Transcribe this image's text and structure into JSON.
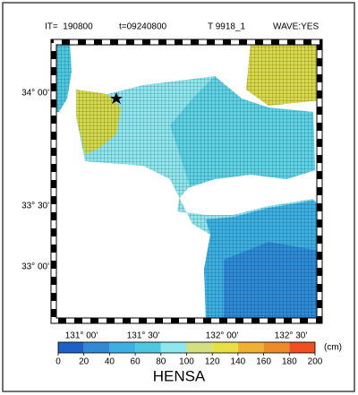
{
  "header": {
    "iteration": "IT=  190800",
    "time": "t=09240800",
    "typhoon": "T 9918_1",
    "wave": "WAVE:YES"
  },
  "map": {
    "lat_labels": [
      "34° 00'",
      "33° 30'",
      "33° 00'"
    ],
    "lon_labels": [
      "131° 00'",
      "131° 30'",
      "132° 00'",
      "132° 30'"
    ]
  },
  "colorbar": {
    "ticks": [
      0,
      20,
      40,
      60,
      80,
      100,
      120,
      140,
      160,
      180,
      200
    ],
    "colors": [
      "#1e5fc8",
      "#2f8ad8",
      "#3cb0e4",
      "#4cc8e0",
      "#8ee6ee",
      "#d2e080",
      "#e8e040",
      "#f0b030",
      "#f08a28",
      "#f05020"
    ],
    "unit": "(cm)",
    "title": "HENSA"
  }
}
